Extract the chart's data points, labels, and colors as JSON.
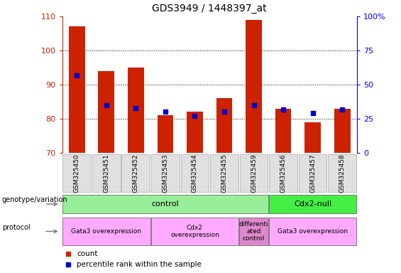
{
  "title": "GDS3949 / 1448397_at",
  "samples": [
    "GSM325450",
    "GSM325451",
    "GSM325452",
    "GSM325453",
    "GSM325454",
    "GSM325455",
    "GSM325459",
    "GSM325456",
    "GSM325457",
    "GSM325458"
  ],
  "counts": [
    107,
    94,
    95,
    81,
    82,
    86,
    109,
    83,
    79,
    83
  ],
  "percentile_ranks_pct": [
    57,
    35,
    33,
    30,
    27,
    30,
    35,
    32,
    29,
    32
  ],
  "ylim_left": [
    70,
    110
  ],
  "ylim_right": [
    0,
    100
  ],
  "yticks_left": [
    70,
    80,
    90,
    100,
    110
  ],
  "yticks_right": [
    0,
    25,
    50,
    75,
    100
  ],
  "ytick_labels_right": [
    "0",
    "25",
    "50",
    "75",
    "100%"
  ],
  "bar_color": "#cc2200",
  "dot_color": "#0000cc",
  "genotype_groups": [
    {
      "label": "control",
      "start": 0,
      "end": 6,
      "color": "#99ee99"
    },
    {
      "label": "Cdx2-null",
      "start": 7,
      "end": 9,
      "color": "#44ee44"
    }
  ],
  "protocol_groups": [
    {
      "label": "Gata3 overexpression",
      "start": 0,
      "end": 2,
      "color": "#ffaaff"
    },
    {
      "label": "Cdx2\noverexpression",
      "start": 3,
      "end": 5,
      "color": "#ffaaff"
    },
    {
      "label": "differenti\nated\ncontrol",
      "start": 6,
      "end": 6,
      "color": "#dd88cc"
    },
    {
      "label": "Gata3 overexpression",
      "start": 7,
      "end": 9,
      "color": "#ffaaff"
    }
  ],
  "legend_items": [
    {
      "label": "count",
      "color": "#cc2200"
    },
    {
      "label": "percentile rank within the sample",
      "color": "#0000cc"
    }
  ]
}
